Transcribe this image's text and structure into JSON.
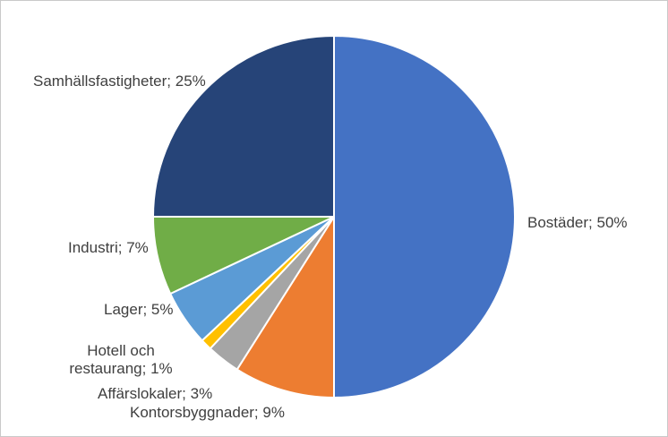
{
  "chart_data": {
    "type": "pie",
    "title": "",
    "legend": "none",
    "labels_position": "outside",
    "direction": "clockwise",
    "start_angle_deg": 0,
    "separator_color": "#ffffff",
    "label_text_color": "#3f3f3f",
    "background_color": "#ffffff",
    "border_color": "#c9c9c9",
    "slices": [
      {
        "label": "Bostäder",
        "value": 50,
        "color": "#4472c4",
        "display": "Bostäder; 50%"
      },
      {
        "label": "Kontorsbyggnader",
        "value": 9,
        "color": "#ed7d31",
        "display": "Kontorsbyggnader; 9%"
      },
      {
        "label": "Affärslokaler",
        "value": 3,
        "color": "#a5a5a5",
        "display": "Affärslokaler; 3%"
      },
      {
        "label": "Hotell och restaurang",
        "value": 1,
        "color": "#ffc000",
        "display": "Hotell och restaurang; 1%"
      },
      {
        "label": "Lager",
        "value": 5,
        "color": "#5b9bd5",
        "display": "Lager; 5%"
      },
      {
        "label": "Industri",
        "value": 7,
        "color": "#70ad47",
        "display": "Industri; 7%"
      },
      {
        "label": "Samhällsfastigheter",
        "value": 25,
        "color": "#264478",
        "display": "Samhällsfastigheter; 25%"
      }
    ]
  }
}
